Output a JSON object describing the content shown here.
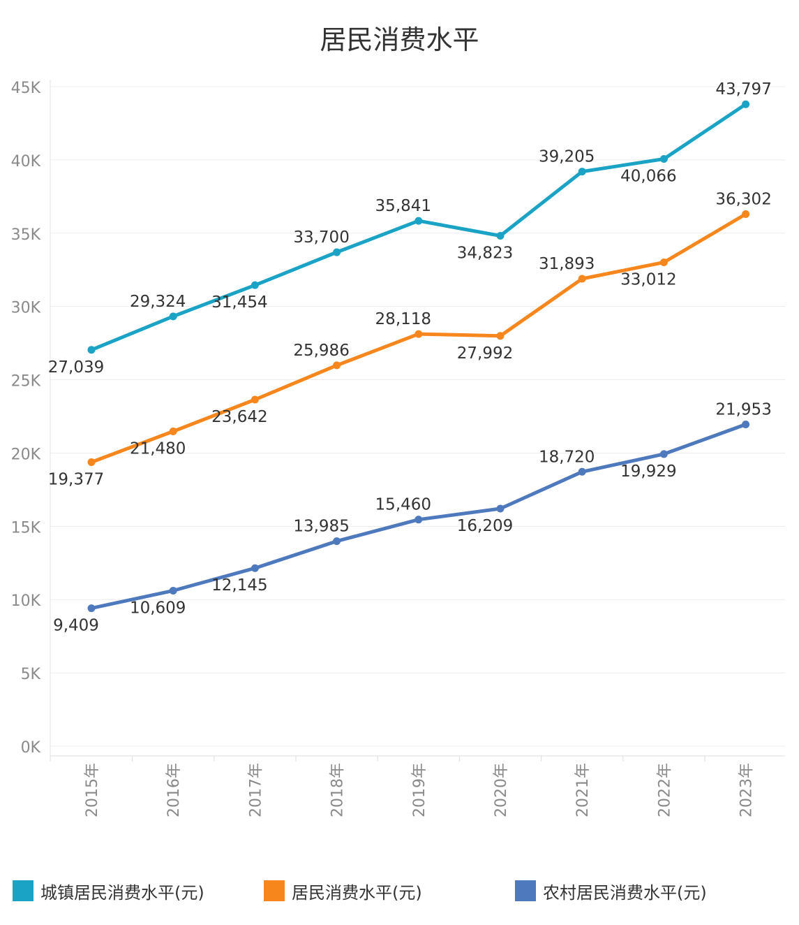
{
  "chart_data": {
    "type": "line",
    "title": "居民消费水平",
    "categories": [
      "2015年",
      "2016年",
      "2017年",
      "2018年",
      "2019年",
      "2020年",
      "2021年",
      "2022年",
      "2023年"
    ],
    "ylim": [
      0,
      45000
    ],
    "yticks": [
      {
        "value": 0,
        "label": "0K"
      },
      {
        "value": 5000,
        "label": "5K"
      },
      {
        "value": 10000,
        "label": "10K"
      },
      {
        "value": 15000,
        "label": "15K"
      },
      {
        "value": 20000,
        "label": "20K"
      },
      {
        "value": 25000,
        "label": "25K"
      },
      {
        "value": 30000,
        "label": "30K"
      },
      {
        "value": 35000,
        "label": "35K"
      },
      {
        "value": 40000,
        "label": "40K"
      },
      {
        "value": 45000,
        "label": "45K"
      }
    ],
    "grid": true,
    "legend_position": "bottom",
    "series": [
      {
        "name": "城镇居民消费水平(元)",
        "color": "#1aa3c5",
        "values": [
          27039,
          29324,
          31454,
          33700,
          35841,
          34823,
          39205,
          40066,
          43797
        ],
        "labels": [
          "27,039",
          "29,324",
          "31,454",
          "33,700",
          "35,841",
          "34,823",
          "39,205",
          "40,066",
          "43,797"
        ],
        "label_positions": [
          "below",
          "above",
          "below",
          "above",
          "above",
          "below",
          "above",
          "below",
          "above"
        ]
      },
      {
        "name": "居民消费水平(元)",
        "color": "#f7861c",
        "values": [
          19377,
          21480,
          23642,
          25986,
          28118,
          27992,
          31893,
          33012,
          36302
        ],
        "labels": [
          "19,377",
          "21,480",
          "23,642",
          "25,986",
          "28,118",
          "27,992",
          "31,893",
          "33,012",
          "36,302"
        ],
        "label_positions": [
          "below",
          "below",
          "below",
          "above",
          "above",
          "below",
          "above",
          "below",
          "above"
        ]
      },
      {
        "name": "农村居民消费水平(元)",
        "color": "#4e79bc",
        "values": [
          9409,
          10609,
          12145,
          13985,
          15460,
          16209,
          18720,
          19929,
          21953
        ],
        "labels": [
          "9,409",
          "10,609",
          "12,145",
          "13,985",
          "15,460",
          "16,209",
          "18,720",
          "19,929",
          "21,953"
        ],
        "label_positions": [
          "below",
          "below",
          "below",
          "above",
          "above",
          "below",
          "above",
          "below",
          "above"
        ]
      }
    ]
  }
}
